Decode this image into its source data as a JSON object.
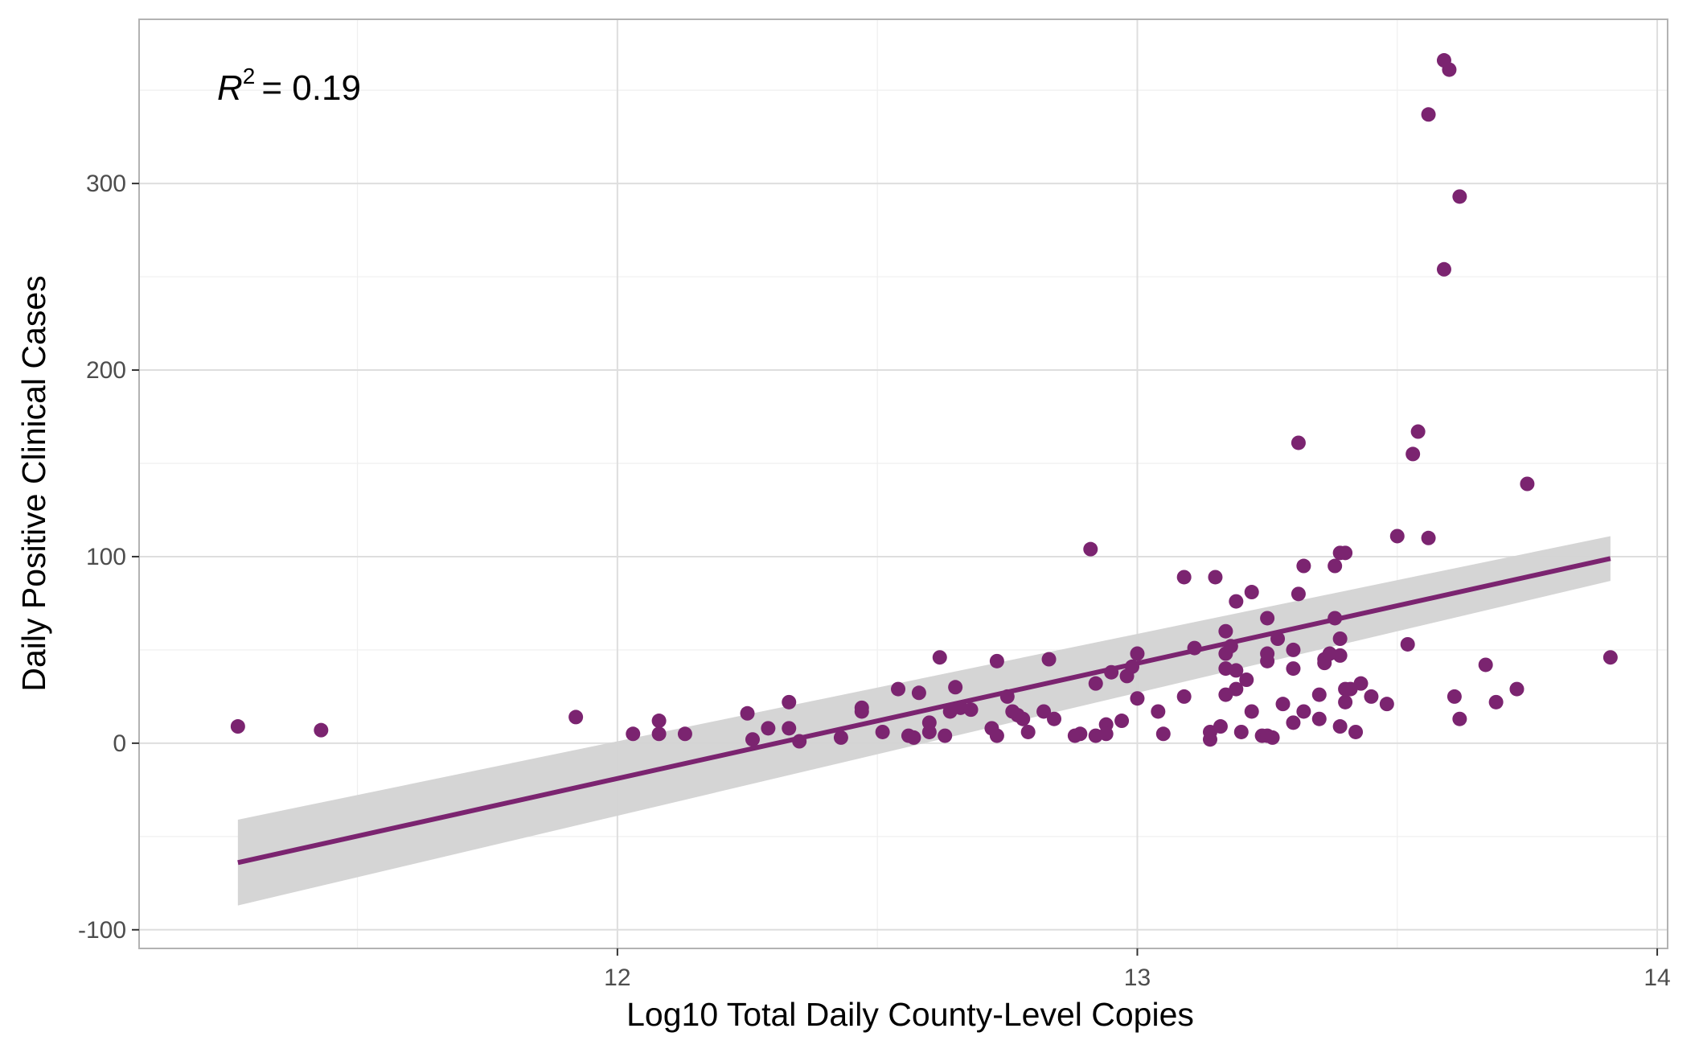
{
  "chart_data": {
    "type": "scatter",
    "title": "",
    "xlabel": "Log10 Total Daily County-Level Copies",
    "ylabel": "Daily Positive Clinical Cases",
    "xlim": [
      11.08,
      14.02
    ],
    "ylim": [
      -110,
      388
    ],
    "x_ticks": [
      12,
      13,
      14
    ],
    "y_ticks": [
      -100,
      0,
      100,
      200,
      300
    ],
    "x_tick_labels": [
      "12",
      "13",
      "14"
    ],
    "y_tick_labels": [
      "-100",
      "0",
      "100",
      "200",
      "300"
    ],
    "grid": true,
    "annotation": {
      "base": "R",
      "superscript": "2",
      "text": "= 0.19"
    },
    "colors": {
      "points": "#7b2470",
      "line": "#7b2470",
      "ribbon": "#d3d3d3",
      "panel_border": "#b3b3b3",
      "grid_major": "#dedede",
      "grid_minor": "#efefef"
    },
    "regression": {
      "x": [
        11.27,
        13.91
      ],
      "y": [
        -64,
        99
      ],
      "ci_lower": [
        -87,
        87
      ],
      "ci_upper": [
        -41,
        111
      ]
    },
    "series": [
      {
        "points": [
          [
            11.27,
            9
          ],
          [
            11.43,
            7
          ],
          [
            11.92,
            14
          ],
          [
            12.03,
            5
          ],
          [
            12.08,
            12
          ],
          [
            12.08,
            5
          ],
          [
            12.13,
            5
          ],
          [
            12.25,
            16
          ],
          [
            12.26,
            2
          ],
          [
            12.29,
            8
          ],
          [
            12.33,
            22
          ],
          [
            12.33,
            8
          ],
          [
            12.35,
            1
          ],
          [
            12.43,
            3
          ],
          [
            12.47,
            19
          ],
          [
            12.47,
            17
          ],
          [
            12.51,
            6
          ],
          [
            12.54,
            29
          ],
          [
            12.56,
            4
          ],
          [
            12.57,
            3
          ],
          [
            12.58,
            27
          ],
          [
            12.6,
            11
          ],
          [
            12.6,
            6
          ],
          [
            12.62,
            46
          ],
          [
            12.63,
            4
          ],
          [
            12.64,
            17
          ],
          [
            12.65,
            30
          ],
          [
            12.66,
            19
          ],
          [
            12.68,
            18
          ],
          [
            12.72,
            8
          ],
          [
            12.73,
            44
          ],
          [
            12.73,
            4
          ],
          [
            12.75,
            25
          ],
          [
            12.76,
            17
          ],
          [
            12.77,
            15
          ],
          [
            12.78,
            13
          ],
          [
            12.79,
            6
          ],
          [
            12.82,
            17
          ],
          [
            12.83,
            45
          ],
          [
            12.84,
            13
          ],
          [
            12.88,
            4
          ],
          [
            12.89,
            5
          ],
          [
            12.91,
            104
          ],
          [
            12.92,
            4
          ],
          [
            12.92,
            32
          ],
          [
            12.94,
            10
          ],
          [
            12.94,
            5
          ],
          [
            12.95,
            38
          ],
          [
            12.97,
            12
          ],
          [
            12.98,
            36
          ],
          [
            12.99,
            41
          ],
          [
            13.0,
            48
          ],
          [
            13.0,
            24
          ],
          [
            13.04,
            17
          ],
          [
            13.05,
            5
          ],
          [
            13.09,
            25
          ],
          [
            13.09,
            89
          ],
          [
            13.11,
            51
          ],
          [
            13.14,
            2
          ],
          [
            13.14,
            6
          ],
          [
            13.15,
            89
          ],
          [
            13.16,
            9
          ],
          [
            13.17,
            60
          ],
          [
            13.17,
            48
          ],
          [
            13.17,
            26
          ],
          [
            13.17,
            40
          ],
          [
            13.18,
            52
          ],
          [
            13.19,
            76
          ],
          [
            13.19,
            39
          ],
          [
            13.19,
            29
          ],
          [
            13.2,
            6
          ],
          [
            13.21,
            34
          ],
          [
            13.22,
            17
          ],
          [
            13.22,
            81
          ],
          [
            13.24,
            4
          ],
          [
            13.25,
            67
          ],
          [
            13.25,
            48
          ],
          [
            13.25,
            44
          ],
          [
            13.25,
            4
          ],
          [
            13.26,
            3
          ],
          [
            13.27,
            56
          ],
          [
            13.28,
            21
          ],
          [
            13.3,
            50
          ],
          [
            13.3,
            40
          ],
          [
            13.3,
            11
          ],
          [
            13.31,
            161
          ],
          [
            13.31,
            80
          ],
          [
            13.32,
            95
          ],
          [
            13.32,
            17
          ],
          [
            13.35,
            13
          ],
          [
            13.35,
            26
          ],
          [
            13.36,
            45
          ],
          [
            13.36,
            43
          ],
          [
            13.37,
            48
          ],
          [
            13.38,
            67
          ],
          [
            13.38,
            95
          ],
          [
            13.39,
            102
          ],
          [
            13.39,
            56
          ],
          [
            13.39,
            47
          ],
          [
            13.39,
            9
          ],
          [
            13.4,
            22
          ],
          [
            13.4,
            102
          ],
          [
            13.4,
            29
          ],
          [
            13.41,
            29
          ],
          [
            13.42,
            6
          ],
          [
            13.43,
            32
          ],
          [
            13.45,
            25
          ],
          [
            13.48,
            21
          ],
          [
            13.5,
            111
          ],
          [
            13.52,
            53
          ],
          [
            13.53,
            155
          ],
          [
            13.54,
            167
          ],
          [
            13.56,
            110
          ],
          [
            13.56,
            337
          ],
          [
            13.59,
            254
          ],
          [
            13.59,
            366
          ],
          [
            13.6,
            361
          ],
          [
            13.61,
            25
          ],
          [
            13.62,
            293
          ],
          [
            13.62,
            13
          ],
          [
            13.67,
            42
          ],
          [
            13.69,
            22
          ],
          [
            13.73,
            29
          ],
          [
            13.75,
            139
          ],
          [
            13.91,
            46
          ]
        ]
      }
    ]
  }
}
